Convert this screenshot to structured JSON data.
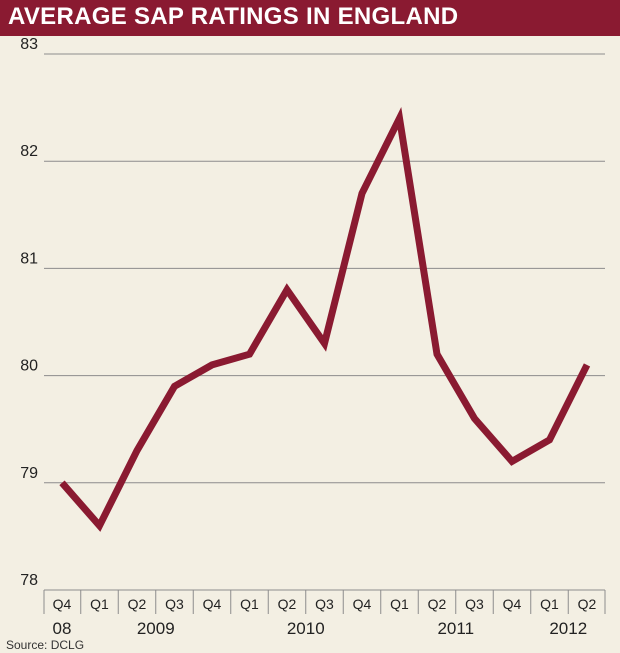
{
  "title": "AVERAGE SAP RATINGS IN ENGLAND",
  "source": "Source: DCLG",
  "colors": {
    "title_bg": "#8a1a31",
    "line": "#8a1a31",
    "background": "#f3efe3",
    "grid": "#8c8c8c",
    "text": "#222222"
  },
  "chart_data": {
    "type": "line",
    "title": "AVERAGE SAP RATINGS IN ENGLAND",
    "xlabel": "",
    "ylabel": "",
    "categories": [
      "Q4",
      "Q1",
      "Q2",
      "Q3",
      "Q4",
      "Q1",
      "Q2",
      "Q3",
      "Q4",
      "Q1",
      "Q2",
      "Q3",
      "Q4",
      "Q1",
      "Q2"
    ],
    "year_labels": [
      {
        "label": "08",
        "start": 0,
        "end": 0
      },
      {
        "label": "2009",
        "start": 1,
        "end": 4
      },
      {
        "label": "2010",
        "start": 5,
        "end": 8
      },
      {
        "label": "2011",
        "start": 9,
        "end": 12
      },
      {
        "label": "2012",
        "start": 13,
        "end": 14
      }
    ],
    "series": [
      {
        "values": [
          79.0,
          78.6,
          79.3,
          79.9,
          80.1,
          80.2,
          80.8,
          80.3,
          81.7,
          82.4,
          80.2,
          79.6,
          79.2,
          79.4,
          80.1
        ]
      }
    ],
    "ylim": [
      78,
      83
    ],
    "yticks": [
      78,
      79,
      80,
      81,
      82,
      83
    ],
    "grid": true,
    "legend": "none"
  }
}
